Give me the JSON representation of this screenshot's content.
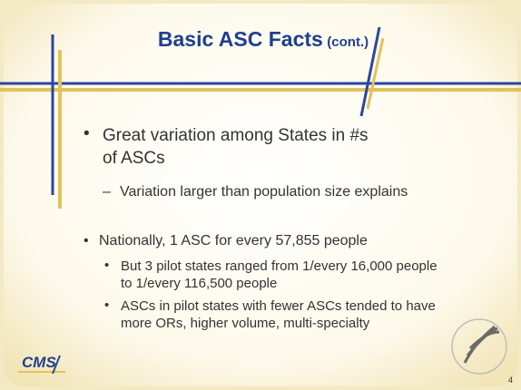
{
  "slide": {
    "title": "Basic ASC Facts",
    "title_suffix": "(cont.)",
    "bullets": [
      {
        "text": "Great variation among States in #s of ASCs",
        "sub": [
          "Variation larger than population size explains"
        ]
      },
      {
        "text": "Nationally, 1 ASC for every 57,855 people",
        "sub": [
          "But 3 pilot states ranged from 1/every 16,000 people to 1/every 116,500 people",
          "ASCs in pilot states with fewer ASCs tended to have more ORs, higher volume, multi-specialty"
        ]
      }
    ],
    "logo": "CMS",
    "page_number": "4"
  }
}
